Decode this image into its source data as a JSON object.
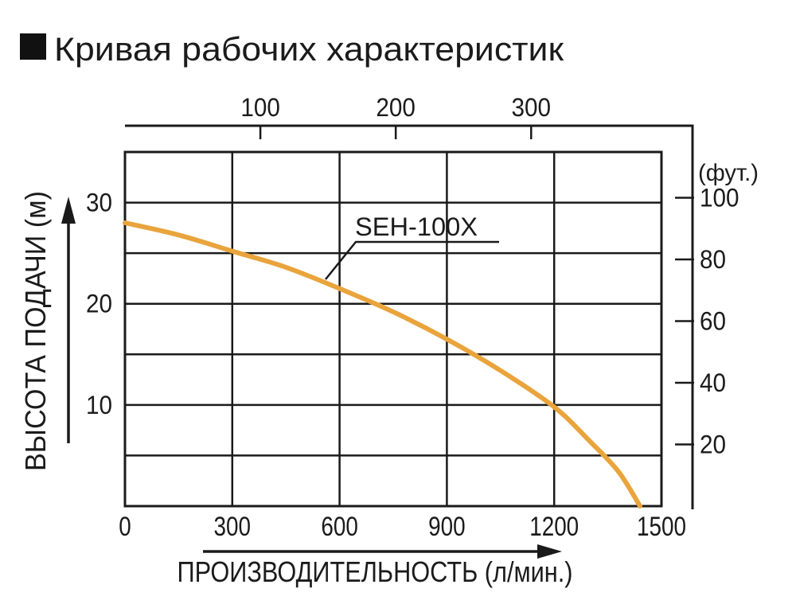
{
  "page": {
    "background": "#FFFFFF"
  },
  "title": {
    "text": "Кривая рабочих характеристик"
  },
  "icons": {
    "title_bullet": "black-square"
  },
  "chart_data": {
    "type": "line",
    "title": "Кривая рабочих характеристик",
    "grid": true,
    "series": [
      {
        "name": "SEH-100X",
        "color": "#E9A43C",
        "points": [
          [
            0,
            28
          ],
          [
            150,
            26.8
          ],
          [
            300,
            25.2
          ],
          [
            450,
            23.6
          ],
          [
            600,
            21.5
          ],
          [
            750,
            19.2
          ],
          [
            900,
            16.5
          ],
          [
            1050,
            13.4
          ],
          [
            1200,
            9.8
          ],
          [
            1300,
            6.4
          ],
          [
            1380,
            3.4
          ],
          [
            1440,
            0
          ]
        ]
      }
    ],
    "x_bottom_axis": {
      "label": "ПРОИЗВОДИТЕЛЬНОСТЬ (л/мин.)",
      "ticks": [
        0,
        300,
        600,
        900,
        1200,
        1500
      ],
      "range": [
        0,
        1500
      ]
    },
    "x_top_axis": {
      "ticks": [
        100,
        200,
        300
      ]
    },
    "y_left_axis": {
      "label": "ВЫСОТА ПОДАЧИ (м)",
      "ticks": [
        30,
        20,
        10
      ],
      "range": [
        0,
        35
      ]
    },
    "y_right_axis": {
      "label": "(фут.)",
      "ticks": [
        100,
        80,
        60,
        40,
        20
      ]
    },
    "callout": {
      "series_label": "SEH-100X"
    }
  },
  "colors": {
    "curve": "#E9A43C",
    "axis": "#1A1A1A",
    "text": "#1B1B1B",
    "background": "#FFFFFF"
  }
}
